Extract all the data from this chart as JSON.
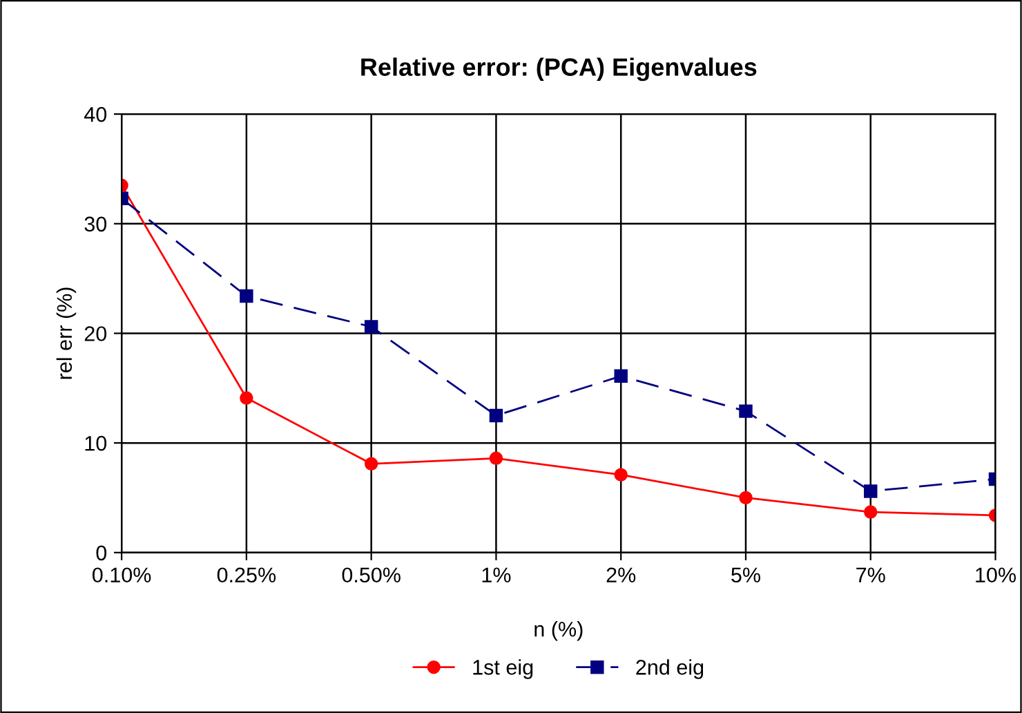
{
  "chart_data": {
    "type": "line",
    "title": "Relative error: (PCA) Eigenvalues",
    "xlabel": "n (%)",
    "ylabel": "rel err (%)",
    "categories": [
      "0.10%",
      "0.25%",
      "0.50%",
      "1%",
      "2%",
      "5%",
      "7%",
      "10%"
    ],
    "series": [
      {
        "name": "1st eig",
        "color": "#ff0000",
        "marker": "circle",
        "line_style": "solid",
        "values": [
          33.5,
          14.1,
          8.1,
          8.6,
          7.1,
          5.0,
          3.7,
          3.4
        ]
      },
      {
        "name": "2nd eig",
        "color": "#000080",
        "marker": "square",
        "line_style": "dashed",
        "values": [
          32.3,
          23.4,
          20.6,
          12.5,
          16.1,
          12.9,
          5.6,
          6.7
        ]
      }
    ],
    "ylim": [
      0,
      40
    ],
    "yticks": [
      0,
      10,
      20,
      30,
      40
    ],
    "grid": true,
    "legend": "bottom"
  }
}
